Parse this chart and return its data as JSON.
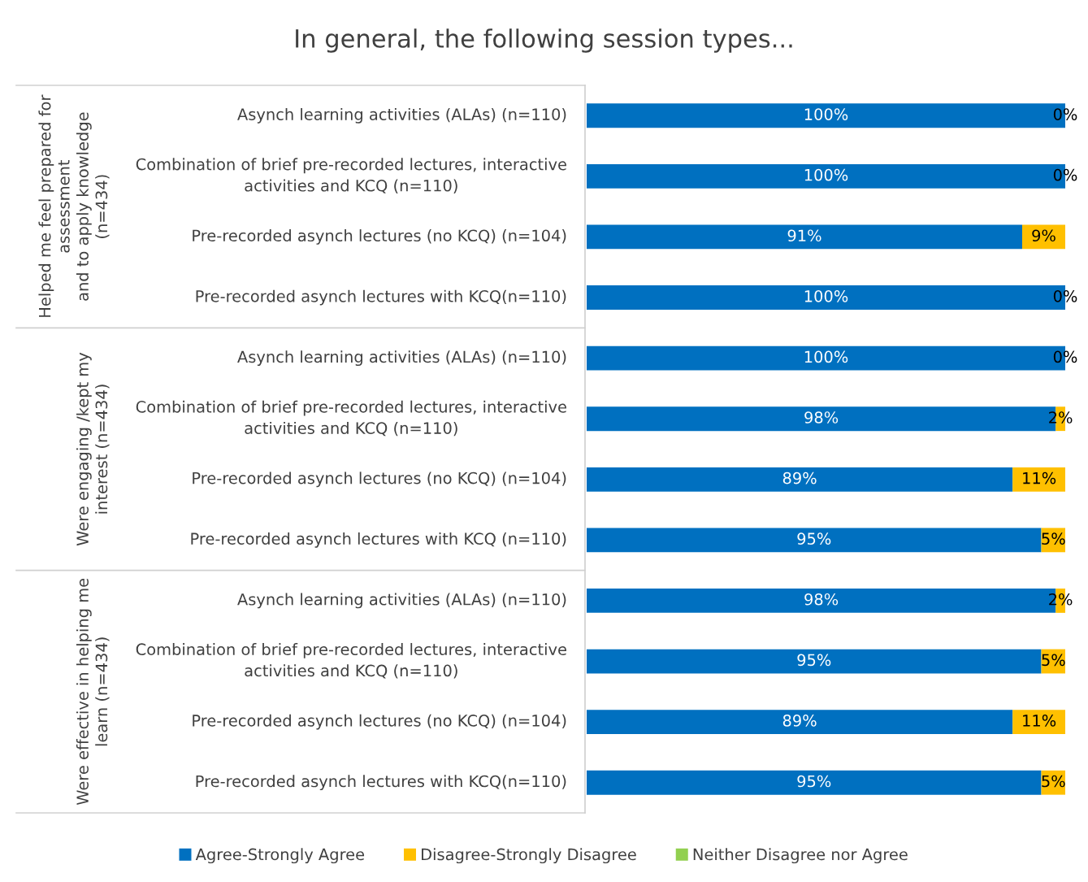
{
  "chart_data": {
    "type": "bar",
    "orientation": "horizontal",
    "stacked": true,
    "title": "In general, the following session types...",
    "categories": [
      "Asynch learning activities (ALAs) (n=110)",
      "Combination of brief pre-recorded lectures, interactive\nactivities and KCQ (n=110)",
      "Pre-recorded asynch lectures (no KCQ) (n=104)",
      "Pre-recorded asynch lectures with KCQ(n=110)",
      "Asynch learning activities (ALAs) (n=110)",
      "Combination of brief pre-recorded lectures, interactive\nactivities and KCQ (n=110)",
      "Pre-recorded asynch lectures (no KCQ) (n=104)",
      "Pre-recorded asynch lectures with KCQ (n=110)",
      "Asynch learning activities (ALAs) (n=110)",
      "Combination of brief pre-recorded lectures, interactive\nactivities and KCQ (n=110)",
      "Pre-recorded asynch lectures (no KCQ) (n=104)",
      "Pre-recorded asynch lectures with KCQ(n=110)"
    ],
    "series": [
      {
        "name": "Agree-Strongly Agree",
        "color": "#0070c0",
        "values": [
          100,
          100,
          91,
          100,
          100,
          98,
          89,
          95,
          98,
          95,
          89,
          95
        ],
        "value_labels": [
          "100%",
          "100%",
          "91%",
          "100%",
          "100%",
          "98%",
          "89%",
          "95%",
          "98%",
          "95%",
          "89%",
          "95%"
        ]
      },
      {
        "name": "Disagree-Strongly Disagree",
        "color": "#ffc000",
        "values": [
          0,
          0,
          9,
          0,
          0,
          2,
          11,
          5,
          2,
          5,
          11,
          5
        ],
        "value_labels": [
          "0%",
          "0%",
          "9%",
          "0%",
          "0%",
          "2%",
          "11%",
          "5%",
          "2%",
          "5%",
          "11%",
          "5%"
        ]
      },
      {
        "name": "Neither Disagree nor Agree",
        "color": "#92d050",
        "values": [
          0,
          0,
          0,
          0,
          0,
          0,
          0,
          0,
          0,
          0,
          0,
          0
        ]
      }
    ],
    "annotations": [
      "Helped me feel prepared for\nassessment\nand to apply knowledge\n(n=434)",
      "Were engaging /kept my\ninterest (n=434)",
      "Were effective in helping me\nlearn (n=434)"
    ],
    "legend": "bottom"
  }
}
